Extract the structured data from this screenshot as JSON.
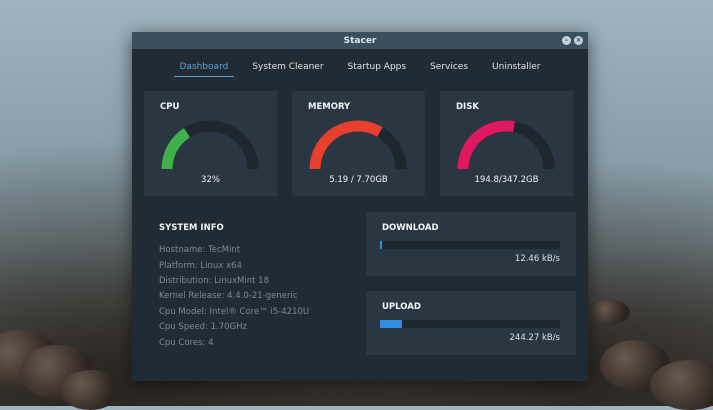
{
  "window": {
    "title": "Stacer"
  },
  "tabs": [
    {
      "label": "Dashboard",
      "active": true
    },
    {
      "label": "System Cleaner",
      "active": false
    },
    {
      "label": "Startup Apps",
      "active": false
    },
    {
      "label": "Services",
      "active": false
    },
    {
      "label": "Uninstaller",
      "active": false
    }
  ],
  "gauges": {
    "cpu": {
      "title": "CPU",
      "value": "32%",
      "fraction": 0.32,
      "color": "#3fb04a"
    },
    "memory": {
      "title": "MEMORY",
      "value": "5.19 / 7.70GB",
      "fraction": 0.67,
      "color": "#e8402f"
    },
    "disk": {
      "title": "DISK",
      "value": "194.8/347.2GB",
      "fraction": 0.56,
      "color": "#e0185f"
    }
  },
  "system_info": {
    "title": "SYSTEM INFO",
    "lines": [
      "Hostname: TecMint",
      "Platform: Linux x64",
      "Distribution: LinuxMint 18",
      "Kernel Release: 4.4.0-21-generic",
      "Cpu Model: Intel® Core™ i5-4210U",
      "Cpu Speed: 1.70GHz",
      "Cpu Cores: 4"
    ]
  },
  "download": {
    "title": "DOWNLOAD",
    "speed": "12.46 kB/s",
    "fraction": 0.01
  },
  "upload": {
    "title": "UPLOAD",
    "speed": "244.27 kB/s",
    "fraction": 0.12
  },
  "colors": {
    "accent": "#5aa3d6",
    "bar": "#2f8ee0",
    "track": "#1e262e",
    "gauge_track": "#1e262e"
  }
}
